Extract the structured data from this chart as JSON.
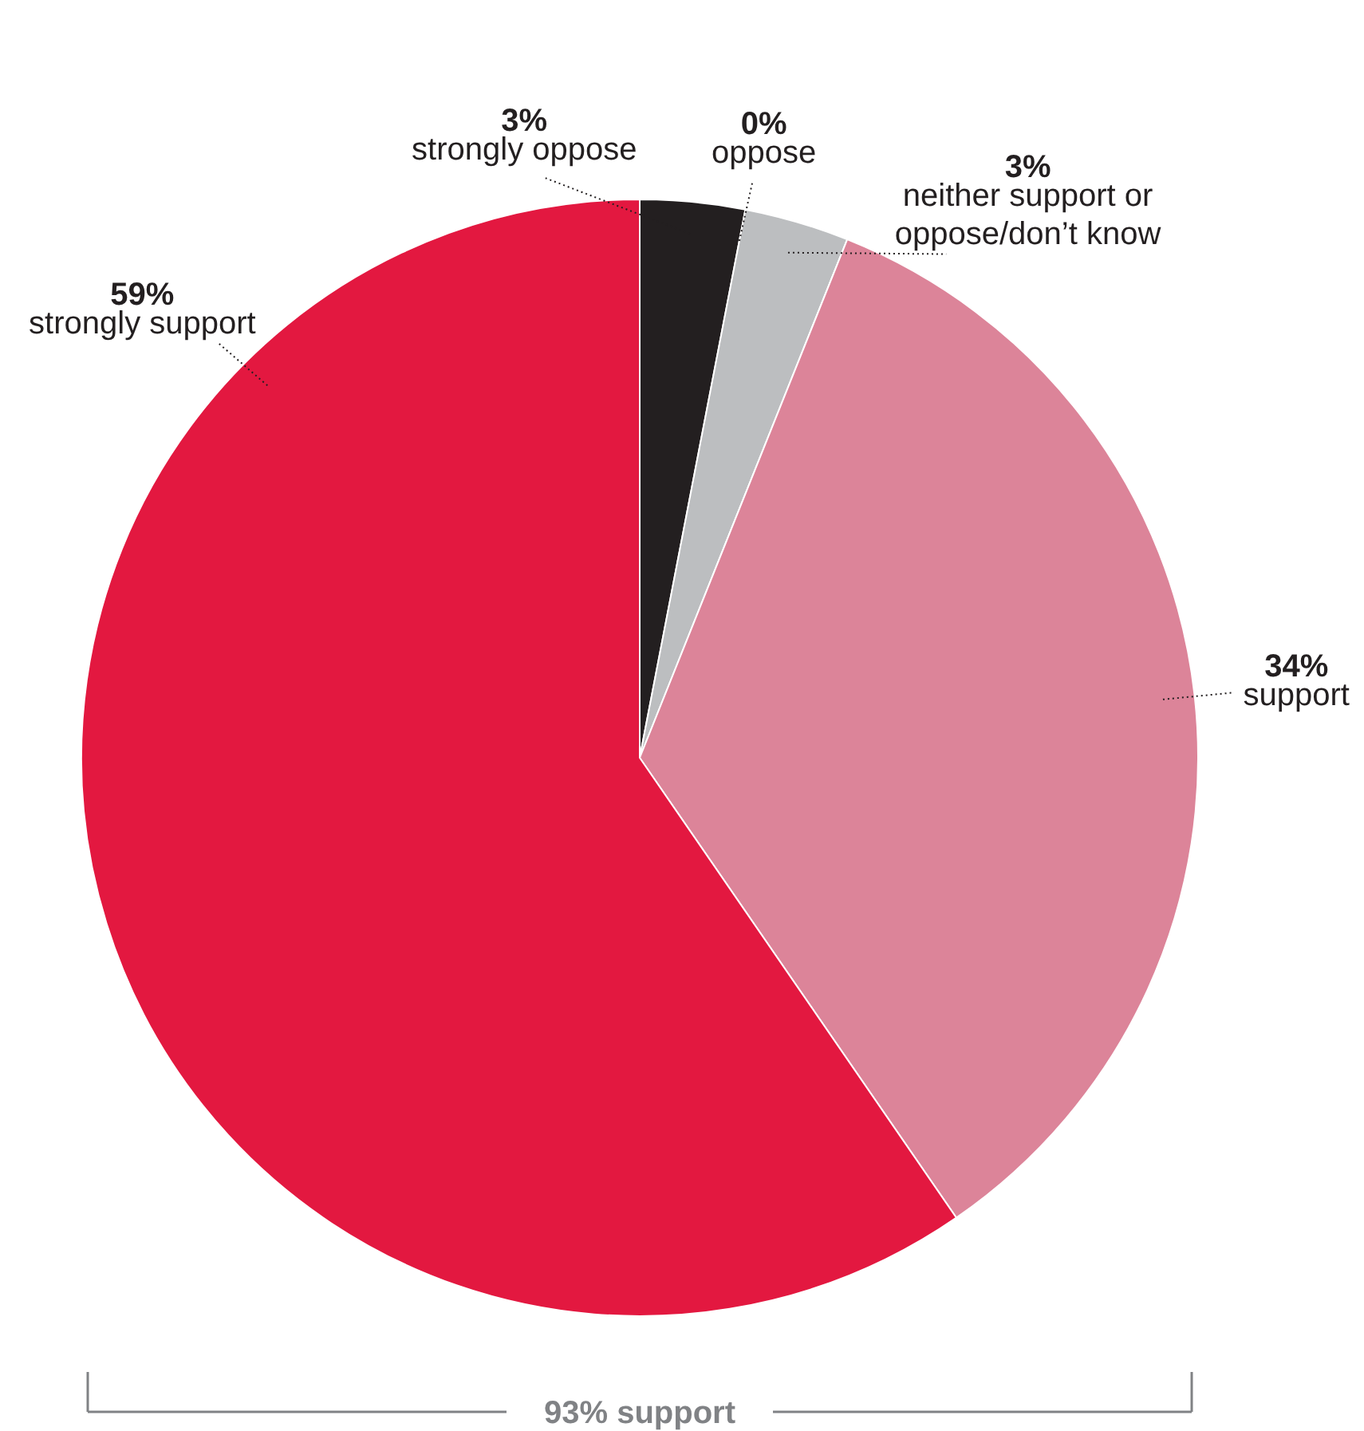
{
  "chart_data": {
    "type": "pie",
    "categories": [
      "strongly oppose",
      "oppose",
      "neither support or oppose/don’t know",
      "support",
      "strongly support"
    ],
    "values": [
      3,
      0,
      3,
      34,
      59
    ],
    "colors": [
      "#231f20",
      "#ffffff",
      "#bcbec0",
      "#dc8499",
      "#e31840"
    ],
    "value_labels": [
      "3%",
      "0%",
      "3%",
      "34%",
      "59%"
    ],
    "legend": false,
    "annotations": [
      "93% support"
    ]
  }
}
